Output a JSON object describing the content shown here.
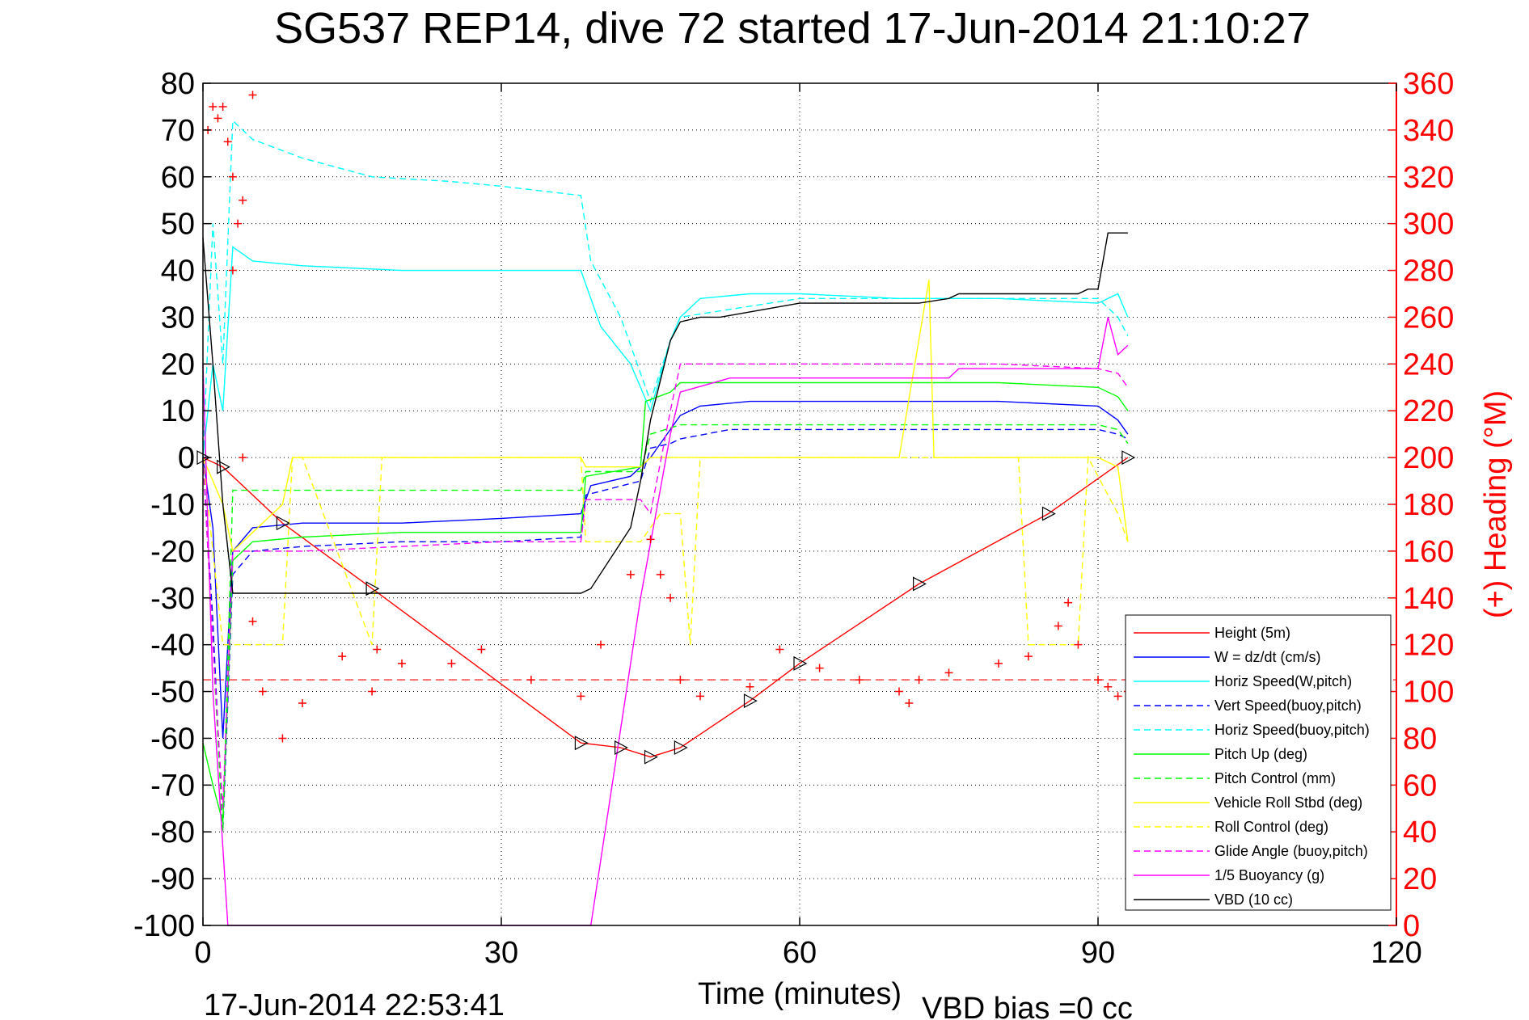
{
  "chart_data": {
    "type": "line",
    "title": "SG537 REP14, dive 72 started 17-Jun-2014 21:10:27",
    "xlabel": "Time (minutes)",
    "ylabel": "",
    "y2label": "(+) Heading (°M)",
    "footer_left": "17-Jun-2014 22:53:41",
    "footer_right": "VBD bias =0 cc",
    "xlim": [
      0,
      120
    ],
    "ylim": [
      -100,
      80
    ],
    "y2lim": [
      0,
      360
    ],
    "xticks": [
      "0",
      "30",
      "60",
      "90",
      "120"
    ],
    "yticks": [
      "80",
      "70",
      "60",
      "50",
      "40",
      "30",
      "20",
      "10",
      "0",
      "-10",
      "-20",
      "-30",
      "-40",
      "-50",
      "-60",
      "-70",
      "-80",
      "-90",
      "-100"
    ],
    "y2ticks": [
      "360",
      "340",
      "320",
      "300",
      "280",
      "260",
      "240",
      "220",
      "200",
      "180",
      "160",
      "140",
      "120",
      "100",
      "80",
      "60",
      "40",
      "20",
      "0"
    ],
    "grid": true,
    "legend_position": "bottom-right",
    "colors": {
      "red": "#ff0000",
      "blue": "#0000ff",
      "cyan": "#00ffff",
      "green": "#00ff00",
      "yellow": "#ffff00",
      "magenta": "#ff00ff",
      "black": "#000000"
    },
    "heading_reference": 105,
    "series": [
      {
        "name": "Height (5m)",
        "color": "#ff0000",
        "style": "solid",
        "x": [
          0,
          2,
          8,
          17,
          38,
          42,
          45,
          48,
          55,
          60,
          72,
          85,
          93
        ],
        "y": [
          0,
          -2,
          -14,
          -28,
          -61,
          -62,
          -64,
          -62,
          -52,
          -44,
          -27,
          -12,
          0
        ]
      },
      {
        "name": "W = dz/dt (cm/s)",
        "color": "#0000ff",
        "style": "solid",
        "x": [
          0,
          1,
          2,
          3,
          5,
          10,
          20,
          30,
          38,
          39,
          43,
          45,
          47,
          48,
          50,
          55,
          60,
          70,
          80,
          90,
          92,
          93
        ],
        "y": [
          0,
          -15,
          -60,
          -20,
          -15,
          -14,
          -14,
          -13,
          -12,
          -6,
          -4,
          0,
          6,
          9,
          11,
          12,
          12,
          12,
          12,
          11,
          8,
          5
        ]
      },
      {
        "name": "Horiz Speed(W,pitch)",
        "color": "#00ffff",
        "style": "solid",
        "x": [
          0,
          1,
          2,
          3,
          5,
          10,
          20,
          30,
          38,
          40,
          43,
          45,
          47,
          48,
          50,
          55,
          60,
          70,
          80,
          90,
          92,
          93
        ],
        "y": [
          0,
          20,
          10,
          45,
          42,
          41,
          40,
          40,
          40,
          28,
          20,
          10,
          25,
          30,
          34,
          35,
          35,
          34,
          34,
          33,
          35,
          30
        ]
      },
      {
        "name": "Vert Speed(buoy,pitch)",
        "color": "#0000ff",
        "style": "dashed",
        "x": [
          0,
          1,
          2,
          3,
          5,
          10,
          20,
          30,
          38,
          38.5,
          44,
          45,
          47,
          48,
          53,
          60,
          70,
          80,
          90,
          92,
          93
        ],
        "y": [
          0,
          -35,
          -80,
          -25,
          -20,
          -19,
          -18,
          -18,
          -17,
          -8,
          -5,
          2,
          3,
          4,
          6,
          6,
          6,
          6,
          6,
          5,
          4
        ]
      },
      {
        "name": "Horiz Speed(buoy,pitch)",
        "color": "#00ffff",
        "style": "dashed",
        "x": [
          0,
          1,
          2,
          3,
          5,
          10,
          17,
          25,
          30,
          38,
          39,
          42,
          44,
          45,
          47,
          48,
          60,
          80,
          90,
          92,
          93
        ],
        "y": [
          0,
          50,
          20,
          72,
          68,
          64,
          60,
          59,
          58,
          56,
          42,
          30,
          18,
          12,
          25,
          30,
          34,
          34,
          34,
          30,
          26
        ]
      },
      {
        "name": "Pitch Up (deg)",
        "color": "#00ff00",
        "style": "solid",
        "x": [
          0,
          1,
          2,
          3,
          5,
          10,
          20,
          30,
          38,
          38.5,
          44,
          44.5,
          47,
          48,
          55,
          60,
          70,
          80,
          90,
          92,
          93
        ],
        "y": [
          -61,
          -70,
          -78,
          -22,
          -18,
          -17,
          -16,
          -16,
          -16,
          -4,
          -2,
          12,
          14,
          16,
          16,
          16,
          16,
          16,
          15,
          13,
          10
        ]
      },
      {
        "name": "Pitch Control (mm)",
        "color": "#00ff00",
        "style": "dashed",
        "x": [
          0,
          1,
          2,
          3,
          10,
          20,
          30,
          38,
          38.5,
          44,
          45,
          48,
          60,
          80,
          90,
          92,
          93
        ],
        "y": [
          0,
          -40,
          -80,
          -7,
          -7,
          -7,
          -7,
          -7,
          -3,
          -3,
          5,
          7,
          7,
          7,
          7,
          6,
          3
        ]
      },
      {
        "name": "Vehicle Roll Stbd (deg)",
        "color": "#ffff00",
        "style": "solid",
        "x": [
          0,
          2,
          3,
          8,
          9,
          10,
          17,
          18,
          30,
          38,
          38.5,
          44,
          45,
          49,
          50,
          70,
          73,
          73.5,
          90,
          92,
          93
        ],
        "y": [
          0,
          -10,
          -20,
          -10,
          0,
          0,
          0,
          0,
          0,
          0,
          -2,
          -2,
          0,
          0,
          0,
          0,
          38,
          0,
          0,
          -2,
          -18
        ]
      },
      {
        "name": "Roll Control (deg)",
        "color": "#ffff00",
        "style": "dashed",
        "x": [
          0,
          2,
          3,
          8,
          9,
          10,
          17,
          18,
          38,
          38.5,
          44,
          46,
          48,
          49,
          50,
          82,
          83,
          88,
          89,
          92,
          93
        ],
        "y": [
          0,
          -40,
          -40,
          -40,
          0,
          0,
          -40,
          0,
          0,
          -18,
          -18,
          -12,
          -12,
          -40,
          0,
          0,
          -40,
          -40,
          0,
          -12,
          -18
        ]
      },
      {
        "name": "Glide Angle (buoy,pitch)",
        "color": "#ff00ff",
        "style": "dashed",
        "x": [
          0,
          1,
          2,
          3,
          10,
          20,
          30,
          38,
          38.5,
          44,
          45,
          47,
          48,
          60,
          80,
          90,
          92,
          93
        ],
        "y": [
          0,
          -40,
          -75,
          -20,
          -20,
          -19,
          -18,
          -18,
          -9,
          -9,
          -12,
          10,
          20,
          20,
          20,
          19,
          18,
          15
        ]
      },
      {
        "name": "1/5 Buoyancy (g)",
        "color": "#ff00ff",
        "style": "solid",
        "x": [
          0,
          1,
          2.5,
          39,
          44,
          47,
          48,
          53,
          60,
          75,
          76,
          90,
          91,
          92,
          93
        ],
        "y": [
          20,
          -50,
          -100,
          -100,
          -30,
          5,
          14,
          17,
          17,
          17,
          19,
          19,
          30,
          22,
          24
        ]
      },
      {
        "name": "VBD (10 cc)",
        "color": "#000000",
        "style": "solid",
        "x": [
          0,
          1,
          2,
          3,
          10,
          20,
          30,
          38,
          39,
          43,
          44,
          45,
          47,
          48,
          50,
          52,
          60,
          70,
          72,
          75,
          76,
          88,
          89,
          90,
          91,
          93
        ],
        "y": [
          47,
          20,
          -10,
          -29,
          -29,
          -29,
          -29,
          -29,
          -28,
          -15,
          -5,
          8,
          25,
          29,
          30,
          30,
          33,
          33,
          33,
          34,
          35,
          35,
          36,
          36,
          48,
          48
        ]
      },
      {
        "name": "Heading",
        "color": "#ff0000",
        "style": "plus",
        "axis": "right",
        "x": [
          0.5,
          1,
          1.5,
          2,
          2.5,
          3,
          4,
          5,
          3.5,
          3,
          4,
          5,
          6,
          8,
          10,
          14,
          17,
          17.5,
          20,
          25,
          28,
          33,
          38,
          40,
          43,
          45,
          46,
          47,
          48,
          50,
          55,
          58,
          62,
          66,
          70,
          71,
          72,
          75,
          80,
          83,
          86,
          87,
          88,
          90,
          91,
          92,
          93
        ],
        "y": [
          340,
          350,
          345,
          350,
          335,
          320,
          310,
          355,
          300,
          280,
          200,
          130,
          100,
          80,
          95,
          115,
          100,
          118,
          112,
          112,
          118,
          105,
          98,
          120,
          150,
          165,
          150,
          140,
          105,
          98,
          102,
          118,
          110,
          105,
          100,
          95,
          105,
          108,
          112,
          115,
          128,
          138,
          120,
          105,
          102,
          98,
          100
        ]
      }
    ]
  }
}
